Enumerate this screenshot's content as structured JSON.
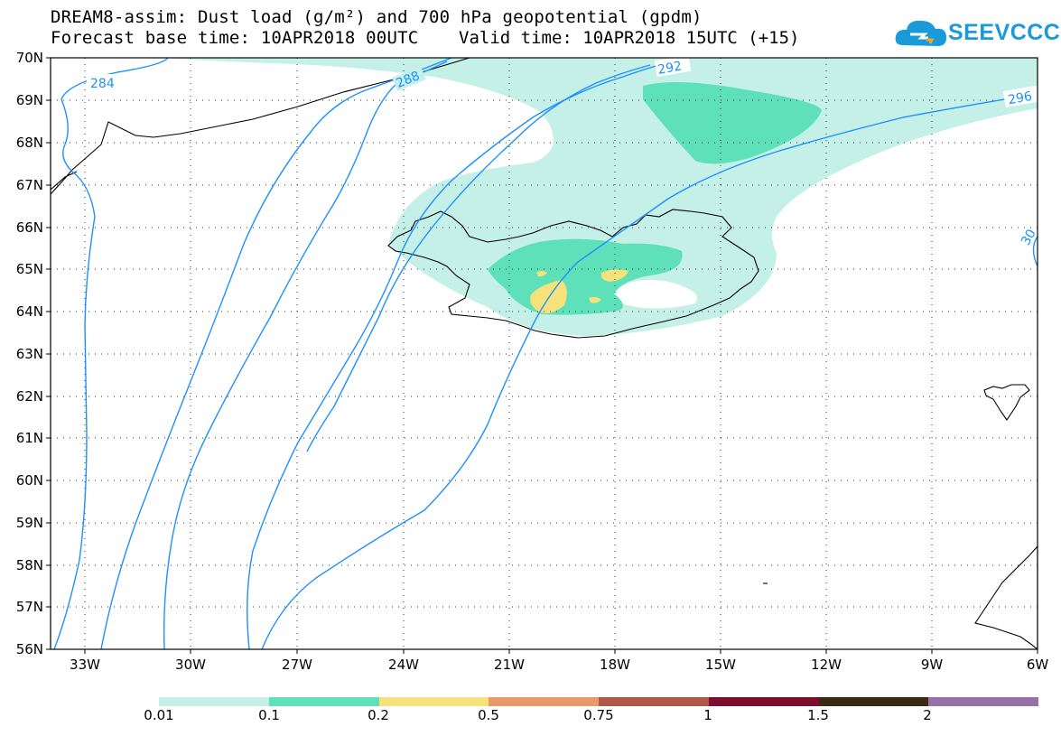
{
  "title": {
    "line1": "DREAM8-assim: Dust load (g/m²) and 700 hPa geopotential (gpdm)",
    "line2_left": "Forecast base time: 10APR2018 00UTC",
    "line2_right": "Valid time: 10APR2018 15UTC (+15)"
  },
  "logo": {
    "text": "SEEVCCC",
    "icon": "cloud-logo-icon",
    "color": "#1a9ad8"
  },
  "map": {
    "region": "Iceland and North Atlantic",
    "lat_labels": [
      "70N",
      "69N",
      "68N",
      "67N",
      "66N",
      "65N",
      "64N",
      "63N",
      "62N",
      "61N",
      "60N",
      "59N",
      "58N",
      "57N",
      "56N"
    ],
    "lon_labels": [
      "33W",
      "30W",
      "27W",
      "24W",
      "21W",
      "18W",
      "15W",
      "12W",
      "9W",
      "6W"
    ],
    "contour_labels": [
      "284",
      "288",
      "292",
      "296",
      "30"
    ],
    "contour_color": "#1e90ff",
    "grid": "dotted"
  },
  "colorbar": {
    "colors": [
      "#c4f0e8",
      "#5ee0b8",
      "#f6e27a",
      "#e89a6a",
      "#b0584a",
      "#7a0f2e",
      "#3a2a14",
      "#9870a8"
    ],
    "labels": [
      "0.01",
      "0.1",
      "0.2",
      "0.5",
      "0.75",
      "1",
      "1.5",
      "2"
    ]
  }
}
